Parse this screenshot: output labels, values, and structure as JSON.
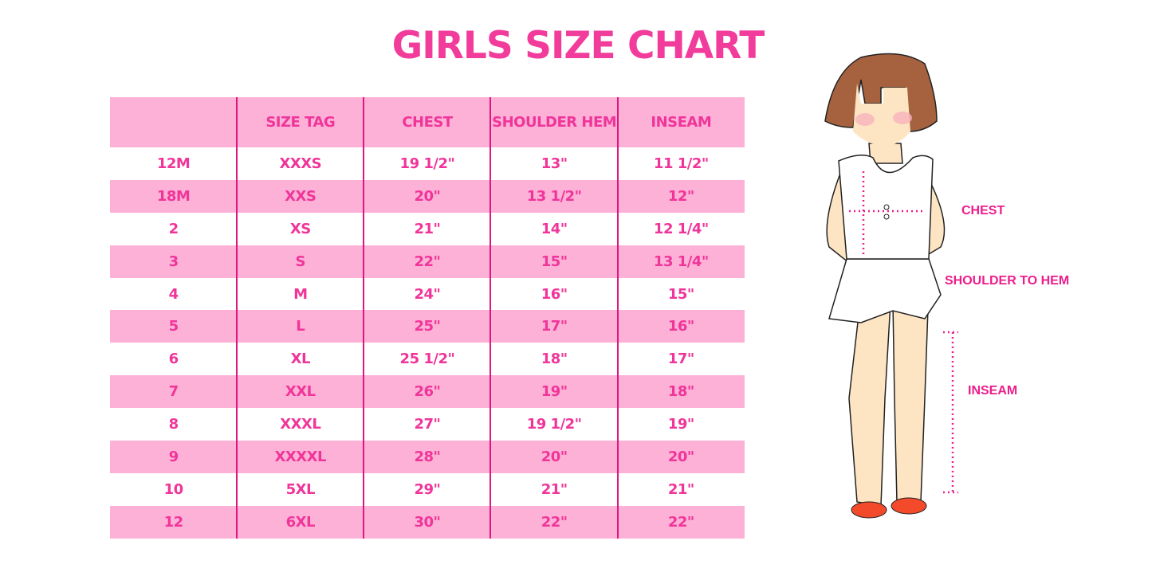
{
  "title": "GIRLS SIZE CHART",
  "colors": {
    "header_bg": "#fdb1d6",
    "text": "#f0359a",
    "divider": "#e0157f"
  },
  "table": {
    "headers": [
      "",
      "SIZE TAG",
      "CHEST",
      "SHOULDER HEM",
      "INSEAM"
    ],
    "rows": [
      [
        "12M",
        "XXXS",
        "19 1/2\"",
        "13\"",
        "11 1/2\""
      ],
      [
        "18M",
        "XXS",
        "20\"",
        "13 1/2\"",
        "12\""
      ],
      [
        "2",
        "XS",
        "21\"",
        "14\"",
        "12 1/4\""
      ],
      [
        "3",
        "S",
        "22\"",
        "15\"",
        "13 1/4\""
      ],
      [
        "4",
        "M",
        "24\"",
        "16\"",
        "15\""
      ],
      [
        "5",
        "L",
        "25\"",
        "17\"",
        "16\""
      ],
      [
        "6",
        "XL",
        "25 1/2\"",
        "18\"",
        "17\""
      ],
      [
        "7",
        "XXL",
        "26\"",
        "19\"",
        "18\""
      ],
      [
        "8",
        "XXXL",
        "27\"",
        "19 1/2\"",
        "19\""
      ],
      [
        "9",
        "XXXXL",
        "28\"",
        "20\"",
        "20\""
      ],
      [
        "10",
        "5XL",
        "29\"",
        "21\"",
        "21\""
      ],
      [
        "12",
        "6XL",
        "30\"",
        "22\"",
        "22\""
      ]
    ]
  },
  "figure": {
    "labels": {
      "chest": "CHEST",
      "shoulder": "SHOULDER TO HEM",
      "inseam": "INSEAM"
    }
  }
}
